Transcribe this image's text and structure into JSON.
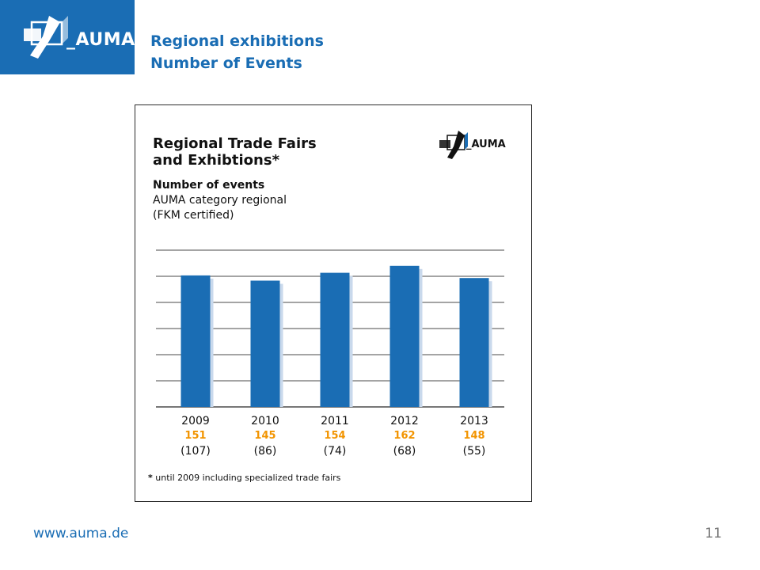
{
  "brand": {
    "logo_text": "_AUMA",
    "color_primary": "#1a6db4",
    "color_accent": "#f29400",
    "icon": "auma-logo-icon"
  },
  "slide": {
    "title_line1": "Regional exhibitions",
    "title_line2": "Number of Events"
  },
  "card": {
    "title_line1": "Regional Trade Fairs",
    "title_line2": "and Exhibtions",
    "title_mark": "*",
    "sub_bold": "Number of events",
    "sub_line2": "AUMA category regional",
    "sub_line3": "(FKM certified)",
    "footnote_mark": "*",
    "footnote_text": " until 2009 including specialized trade fairs"
  },
  "chart_data": {
    "type": "bar",
    "categories": [
      "2009",
      "2010",
      "2011",
      "2012",
      "2013"
    ],
    "values": [
      151,
      145,
      154,
      162,
      148
    ],
    "value_labels": [
      "151",
      "145",
      "154",
      "162",
      "148"
    ],
    "secondary_labels": [
      "(107)",
      "(86)",
      "(74)",
      "(68)",
      "(55)"
    ],
    "ylim": [
      0,
      180
    ],
    "grid": true,
    "colors": {
      "bar": "#1a6db4",
      "shadow": "#c9d9ec",
      "value_label": "#f29400",
      "grid": "#4a4a4a"
    }
  },
  "footer": {
    "url": "www.auma.de",
    "page_number": "11"
  }
}
